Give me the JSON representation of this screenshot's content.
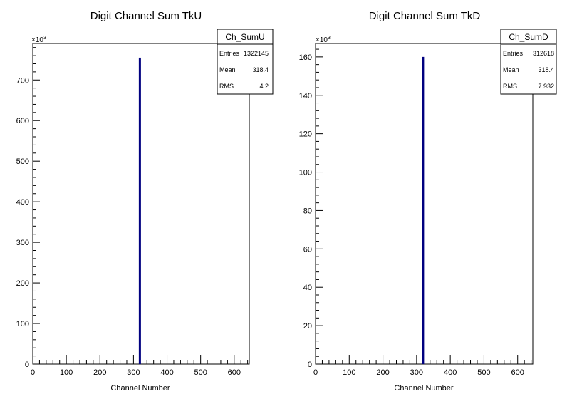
{
  "chart_data": [
    {
      "type": "bar",
      "title": "Digit Channel Sum TkU",
      "xlabel": "Channel Number",
      "ylabel": "",
      "xlim": [
        0,
        645
      ],
      "ylim": [
        0,
        790
      ],
      "y_multiplier": "×10",
      "y_multiplier_exp": "3",
      "xticks": [
        "0",
        "100",
        "200",
        "300",
        "400",
        "500",
        "600"
      ],
      "yticks": [
        "0",
        "100",
        "200",
        "300",
        "400",
        "500",
        "600",
        "700"
      ],
      "bins": [
        {
          "x": 318,
          "value": 755
        }
      ],
      "stats_box": {
        "name": "Ch_SumU",
        "rows": [
          {
            "label": "Entries",
            "value": "1322145"
          },
          {
            "label": "Mean",
            "value": "318.4"
          },
          {
            "label": "RMS",
            "value": "4.2"
          }
        ]
      },
      "colors": {
        "line": "#000080"
      }
    },
    {
      "type": "bar",
      "title": "Digit Channel Sum TkD",
      "xlabel": "Channel Number",
      "ylabel": "",
      "xlim": [
        0,
        645
      ],
      "ylim": [
        0,
        167
      ],
      "y_multiplier": "×10",
      "y_multiplier_exp": "3",
      "xticks": [
        "0",
        "100",
        "200",
        "300",
        "400",
        "500",
        "600"
      ],
      "yticks": [
        "0",
        "20",
        "40",
        "60",
        "80",
        "100",
        "120",
        "140",
        "160"
      ],
      "bins": [
        {
          "x": 318,
          "value": 160
        }
      ],
      "stats_box": {
        "name": "Ch_SumD",
        "rows": [
          {
            "label": "Entries",
            "value": "312618"
          },
          {
            "label": "Mean",
            "value": "318.4"
          },
          {
            "label": "RMS",
            "value": "7.932"
          }
        ]
      },
      "colors": {
        "line": "#000080"
      }
    }
  ]
}
